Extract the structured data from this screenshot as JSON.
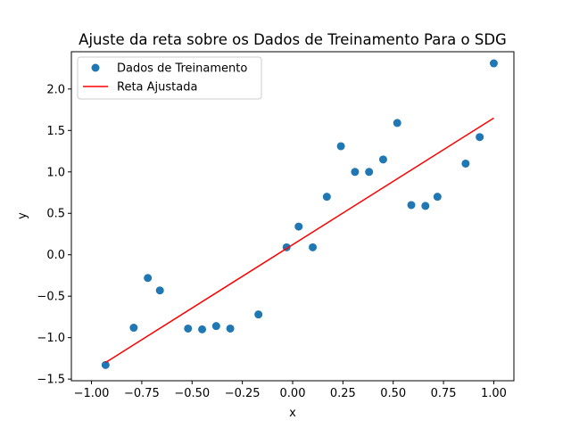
{
  "chart_data": {
    "type": "scatter",
    "title": "Ajuste da reta sobre os Dados de Treinamento Para o SDG",
    "xlabel": "x",
    "ylabel": "y",
    "xlim": [
      -1.1,
      1.1
    ],
    "ylim": [
      -1.52,
      2.45
    ],
    "xticks": [
      -1.0,
      -0.75,
      -0.5,
      -0.25,
      0.0,
      0.25,
      0.5,
      0.75,
      1.0
    ],
    "xtick_labels": [
      "−1.00",
      "−0.75",
      "−0.50",
      "−0.25",
      "0.00",
      "0.25",
      "0.50",
      "0.75",
      "1.00"
    ],
    "yticks": [
      -1.5,
      -1.0,
      -0.5,
      0.0,
      0.5,
      1.0,
      1.5,
      2.0
    ],
    "ytick_labels": [
      "−1.5",
      "−1.0",
      "−0.5",
      "0.0",
      "0.5",
      "1.0",
      "1.5",
      "2.0"
    ],
    "grid": false,
    "legend_position": "top-left",
    "series": [
      {
        "name": "Dados de Treinamento",
        "kind": "scatter",
        "color": "#1f77b4",
        "points": [
          [
            -0.93,
            -1.33
          ],
          [
            -0.79,
            -0.88
          ],
          [
            -0.72,
            -0.28
          ],
          [
            -0.66,
            -0.43
          ],
          [
            -0.52,
            -0.89
          ],
          [
            -0.45,
            -0.9
          ],
          [
            -0.38,
            -0.86
          ],
          [
            -0.31,
            -0.89
          ],
          [
            -0.17,
            -0.72
          ],
          [
            -0.03,
            0.09
          ],
          [
            0.03,
            0.34
          ],
          [
            0.1,
            0.09
          ],
          [
            0.17,
            0.7
          ],
          [
            0.24,
            1.31
          ],
          [
            0.31,
            1.0
          ],
          [
            0.38,
            1.0
          ],
          [
            0.45,
            1.15
          ],
          [
            0.52,
            1.59
          ],
          [
            0.59,
            0.6
          ],
          [
            0.66,
            0.59
          ],
          [
            0.72,
            0.7
          ],
          [
            0.86,
            1.1
          ],
          [
            0.93,
            1.42
          ],
          [
            1.0,
            2.31
          ]
        ]
      },
      {
        "name": "Reta Ajustada",
        "kind": "line",
        "color": "#ff0000",
        "points": [
          [
            -0.93,
            -1.3
          ],
          [
            1.0,
            1.65
          ]
        ]
      }
    ]
  }
}
